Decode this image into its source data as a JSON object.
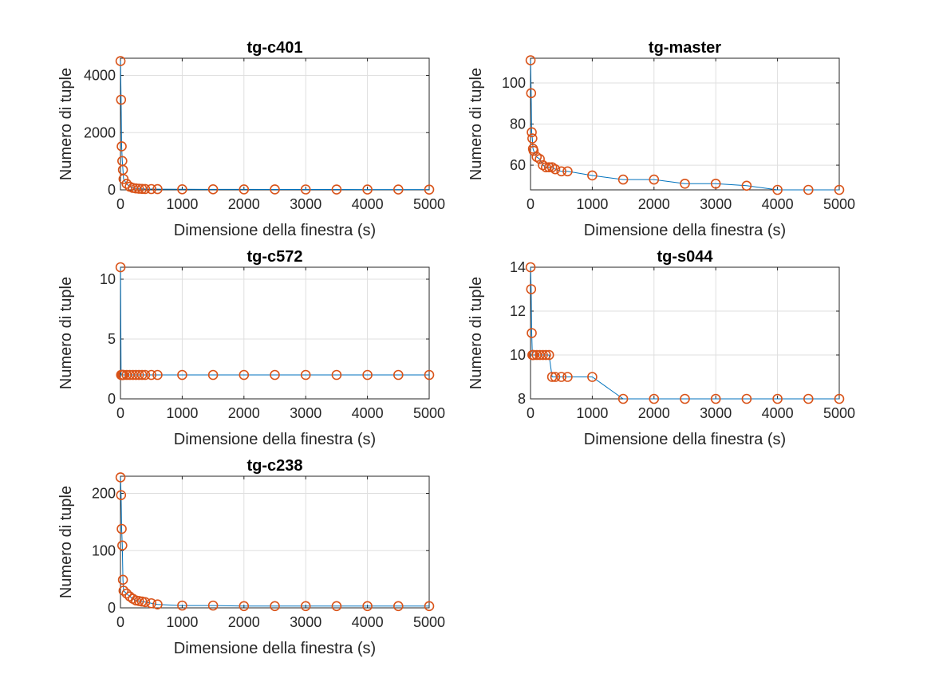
{
  "figure": {
    "colors": {
      "line": "#0072BD",
      "marker": "#D95319",
      "grid": "#dfdfdf",
      "axes": "#262626"
    }
  },
  "chart_data": [
    {
      "type": "line",
      "title": "tg-c401",
      "xlabel": "Dimensione della finestra (s)",
      "ylabel": "Numero di tuple",
      "xlim": [
        0,
        5000
      ],
      "ylim": [
        0,
        4600
      ],
      "xticks": [
        0,
        1000,
        2000,
        3000,
        4000,
        5000
      ],
      "yticks": [
        0,
        2000,
        4000
      ],
      "grid": true,
      "marker": "circle",
      "series": [
        {
          "x": [
            1,
            10,
            20,
            30,
            40,
            50,
            100,
            150,
            200,
            250,
            300,
            350,
            400,
            500,
            600,
            1000,
            1500,
            2000,
            2500,
            3000,
            3500,
            4000,
            4500,
            5000
          ],
          "y": [
            4500,
            3150,
            1520,
            1010,
            700,
            380,
            210,
            110,
            70,
            50,
            40,
            35,
            30,
            28,
            25,
            20,
            18,
            16,
            15,
            14,
            13,
            12,
            11,
            10
          ]
        }
      ]
    },
    {
      "type": "line",
      "title": "tg-master",
      "xlabel": "Dimensione della finestra (s)",
      "ylabel": "Numero di tuple",
      "xlim": [
        0,
        5000
      ],
      "ylim": [
        48,
        112
      ],
      "xticks": [
        0,
        1000,
        2000,
        3000,
        4000,
        5000
      ],
      "yticks": [
        60,
        80,
        100
      ],
      "grid": true,
      "marker": "circle",
      "series": [
        {
          "x": [
            1,
            10,
            20,
            30,
            40,
            50,
            100,
            150,
            200,
            250,
            300,
            350,
            400,
            500,
            600,
            1000,
            1500,
            2000,
            2500,
            3000,
            3500,
            4000,
            4500,
            5000
          ],
          "y": [
            111,
            95,
            76,
            73,
            68,
            67,
            64,
            63,
            60,
            59,
            59,
            59,
            58,
            57,
            57,
            55,
            53,
            53,
            51,
            51,
            50,
            48,
            48,
            48
          ]
        }
      ]
    },
    {
      "type": "line",
      "title": "tg-c572",
      "xlabel": "Dimensione della finestra (s)",
      "ylabel": "Numero di tuple",
      "xlim": [
        0,
        5000
      ],
      "ylim": [
        0,
        11
      ],
      "xticks": [
        0,
        1000,
        2000,
        3000,
        4000,
        5000
      ],
      "yticks": [
        0,
        5,
        10
      ],
      "grid": true,
      "marker": "circle",
      "series": [
        {
          "x": [
            1,
            10,
            20,
            30,
            40,
            50,
            100,
            150,
            200,
            250,
            300,
            350,
            400,
            500,
            600,
            1000,
            1500,
            2000,
            2500,
            3000,
            3500,
            4000,
            4500,
            5000
          ],
          "y": [
            11,
            2,
            2,
            2,
            2,
            2,
            2,
            2,
            2,
            2,
            2,
            2,
            2,
            2,
            2,
            2,
            2,
            2,
            2,
            2,
            2,
            2,
            2,
            2
          ]
        }
      ]
    },
    {
      "type": "line",
      "title": "tg-s044",
      "xlabel": "Dimensione della finestra (s)",
      "ylabel": "Numero di tuple",
      "xlim": [
        0,
        5000
      ],
      "ylim": [
        8,
        14
      ],
      "xticks": [
        0,
        1000,
        2000,
        3000,
        4000,
        5000
      ],
      "yticks": [
        8,
        10,
        12,
        14
      ],
      "grid": true,
      "marker": "circle",
      "series": [
        {
          "x": [
            1,
            10,
            20,
            30,
            40,
            50,
            100,
            150,
            200,
            250,
            300,
            350,
            400,
            500,
            600,
            1000,
            1500,
            2000,
            2500,
            3000,
            3500,
            4000,
            4500,
            5000
          ],
          "y": [
            14,
            13,
            11,
            10,
            10,
            10,
            10,
            10,
            10,
            10,
            10,
            9,
            9,
            9,
            9,
            9,
            8,
            8,
            8,
            8,
            8,
            8,
            8,
            8
          ]
        }
      ]
    },
    {
      "type": "line",
      "title": "tg-c238",
      "xlabel": "Dimensione della finestra (s)",
      "ylabel": "Numero di tuple",
      "xlim": [
        0,
        5000
      ],
      "ylim": [
        0,
        230
      ],
      "xticks": [
        0,
        1000,
        2000,
        3000,
        4000,
        5000
      ],
      "yticks": [
        0,
        100,
        200
      ],
      "grid": true,
      "marker": "circle",
      "series": [
        {
          "x": [
            1,
            10,
            20,
            30,
            40,
            50,
            100,
            150,
            200,
            250,
            300,
            350,
            400,
            500,
            600,
            1000,
            1500,
            2000,
            2500,
            3000,
            3500,
            4000,
            4500,
            5000
          ],
          "y": [
            228,
            197,
            138,
            109,
            49,
            30,
            25,
            20,
            16,
            13,
            12,
            11,
            10,
            8,
            6,
            4,
            4,
            3,
            3,
            3,
            3,
            3,
            3,
            3
          ]
        }
      ]
    }
  ]
}
